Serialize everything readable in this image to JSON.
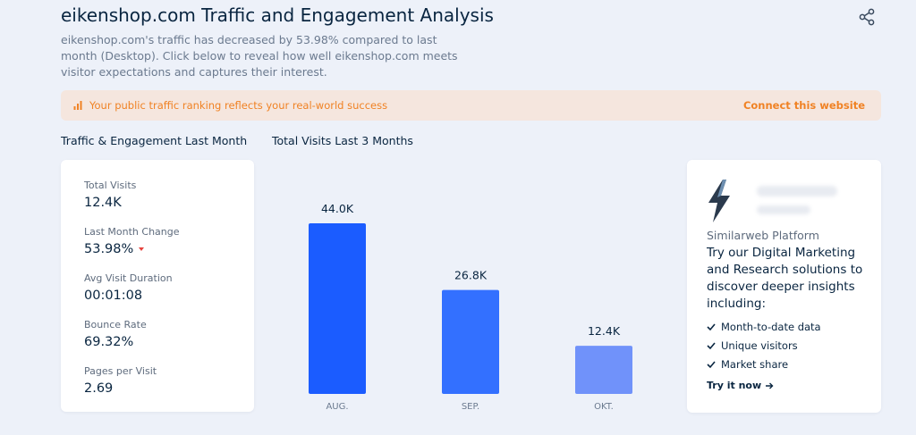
{
  "header": {
    "title": "eikenshop.com Traffic and Engagement Analysis",
    "subtitle": "eikenshop.com's traffic has decreased by 53.98% compared to last month (Desktop). Click below to reveal how well eikenshop.com meets visitor expectations and captures their interest.",
    "share_icon": "share-icon"
  },
  "banner": {
    "text": "Your public traffic ranking reflects your real-world success",
    "link": "Connect this website",
    "color": "#f08224",
    "icon": "bar-chart-icon"
  },
  "sections": {
    "metrics_title": "Traffic & Engagement Last Month",
    "visits_title": "Total Visits Last 3 Months"
  },
  "metrics": [
    {
      "label": "Total Visits",
      "value": "12.4K"
    },
    {
      "label": "Last Month Change",
      "value": "53.98%",
      "trend": "down"
    },
    {
      "label": "Avg Visit Duration",
      "value": "00:01:08"
    },
    {
      "label": "Bounce Rate",
      "value": "69.32%"
    },
    {
      "label": "Pages per Visit",
      "value": "2.69"
    }
  ],
  "chart_data": {
    "type": "bar",
    "title": "Total Visits Last 3 Months",
    "categories": [
      "AUG.",
      "SEP.",
      "OKT."
    ],
    "values": [
      44000,
      26800,
      12400
    ],
    "value_labels": [
      "44.0K",
      "26.8K",
      "12.4K"
    ],
    "bar_colors": [
      "#1b5cff",
      "#3370ff",
      "#7092fa"
    ],
    "ylim": [
      0,
      44000
    ],
    "grid": false
  },
  "promo": {
    "brand": "Similarweb Platform",
    "heading": "Try our Digital Marketing and Research solutions to discover deeper insights including:",
    "items": [
      "Month-to-date data",
      "Unique visitors",
      "Market share"
    ],
    "cta": "Try it now"
  }
}
